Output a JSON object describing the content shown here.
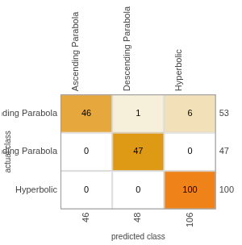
{
  "chart_data": {
    "type": "heatmap",
    "x_label": "predicted class",
    "y_label": "actual class",
    "x_categories": [
      "Ascending Parabola",
      "Descending Parabola",
      "Hyperbolic"
    ],
    "y_categories": [
      "Ascending Parabola",
      "Descending Parabola",
      "Hyperbolic"
    ],
    "cells": [
      [
        46,
        1,
        6
      ],
      [
        0,
        47,
        0
      ],
      [
        0,
        0,
        100
      ]
    ],
    "colors": [
      [
        "#e6a83c",
        "#f6efd9",
        "#f1e0b8"
      ],
      [
        "#ffffff",
        "#de9a14",
        "#ffffff"
      ],
      [
        "#ffffff",
        "#ffffff",
        "#f0821a"
      ]
    ],
    "column_totals": [
      46,
      48,
      106
    ],
    "row_totals": [
      53,
      47,
      100
    ],
    "data_labels": true
  }
}
